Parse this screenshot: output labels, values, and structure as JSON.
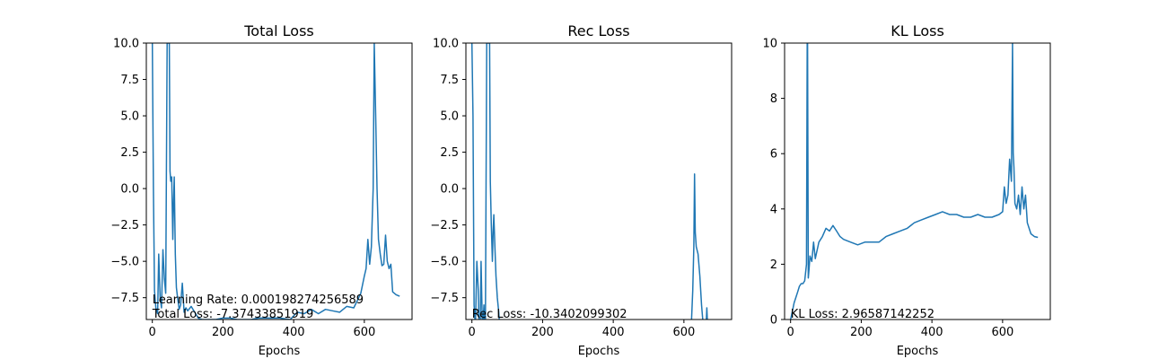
{
  "chart_data": [
    {
      "type": "line",
      "title": "Total Loss",
      "xlabel": "Epochs",
      "ylabel": "",
      "xlim": [
        -17,
        735
      ],
      "ylim": [
        -9,
        10
      ],
      "xticks": [
        0,
        200,
        400,
        600
      ],
      "xtick_labels": [
        "0",
        "200",
        "400",
        "600"
      ],
      "yticks": [
        -7.5,
        -5.0,
        -2.5,
        0.0,
        2.5,
        5.0,
        7.5,
        10.0
      ],
      "ytick_labels": [
        "−7.5",
        "−5.0",
        "−2.5",
        "0.0",
        "2.5",
        "5.0",
        "7.5",
        "10.0"
      ],
      "annotations": [
        "Learning Rate: 0.000198274256589",
        "Total Loss: -7.37433851919"
      ],
      "series_color": "#1f77b4",
      "series": [
        {
          "x": [
            0,
            3,
            6,
            10,
            15,
            18,
            22,
            26,
            30,
            34,
            38,
            42,
            45,
            48,
            50,
            52,
            55,
            58,
            60,
            62,
            65,
            68,
            72,
            76,
            80,
            85,
            90,
            95,
            100,
            110,
            120,
            130,
            140,
            160,
            180,
            200,
            220,
            240,
            260,
            280,
            300,
            330,
            360,
            390,
            410,
            430,
            450,
            470,
            490,
            510,
            530,
            550,
            570,
            590,
            600,
            605,
            610,
            615,
            620,
            625,
            628,
            632,
            636,
            640,
            645,
            650,
            655,
            660,
            665,
            670,
            675,
            680,
            690,
            700
          ],
          "y": [
            10,
            0,
            -7,
            -8.2,
            -8.6,
            -4.5,
            -7.5,
            -8.2,
            -4.2,
            -6.2,
            -7.2,
            10,
            10,
            10,
            1.2,
            0.5,
            0.8,
            -3.5,
            -1.0,
            0.8,
            -4.5,
            -6.8,
            -7.6,
            -8.3,
            -8.0,
            -6.5,
            -8.5,
            -8.2,
            -8.4,
            -8.1,
            -8.5,
            -8.9,
            -9.0,
            -9.0,
            -9.0,
            -8.9,
            -8.9,
            -9.0,
            -9.0,
            -9.0,
            -8.9,
            -8.9,
            -8.9,
            -9.0,
            -8.5,
            -8.6,
            -8.3,
            -8.6,
            -8.3,
            -8.4,
            -8.5,
            -8.1,
            -8.2,
            -7.2,
            -6.0,
            -5.5,
            -3.5,
            -5.2,
            -4.0,
            0.0,
            10,
            5.0,
            0.0,
            -3.5,
            -4.5,
            -5.3,
            -5.2,
            -3.2,
            -5.0,
            -5.5,
            -5.2,
            -7.1,
            -7.3,
            -7.4
          ]
        }
      ]
    },
    {
      "type": "line",
      "title": "Rec Loss",
      "xlabel": "Epochs",
      "ylabel": "",
      "xlim": [
        -17,
        735
      ],
      "ylim": [
        -9,
        10
      ],
      "xticks": [
        0,
        200,
        400,
        600
      ],
      "xtick_labels": [
        "0",
        "200",
        "400",
        "600"
      ],
      "yticks": [
        -7.5,
        -5.0,
        -2.5,
        0.0,
        2.5,
        5.0,
        7.5,
        10.0
      ],
      "ytick_labels": [
        "−7.5",
        "−5.0",
        "−2.5",
        "0.0",
        "2.5",
        "5.0",
        "7.5",
        "10.0"
      ],
      "annotations": [
        "Rec Loss: -10.3402099302"
      ],
      "series_color": "#1f77b4",
      "series": [
        {
          "x": [
            0,
            3,
            6,
            10,
            14,
            18,
            22,
            26,
            30,
            34,
            38,
            42,
            45,
            48,
            50,
            52,
            55,
            58,
            60,
            62,
            65,
            68,
            72,
            76,
            80,
            620,
            625,
            628,
            630,
            632,
            635,
            640,
            645,
            650,
            655,
            660,
            665,
            668,
            672
          ],
          "y": [
            10,
            5.0,
            -8.0,
            -9.5,
            -5.0,
            -7.0,
            -12.0,
            -5.0,
            -10.0,
            -8.0,
            -11,
            10,
            10,
            10,
            10,
            0.5,
            -2.5,
            -5.0,
            -3.0,
            -1.8,
            -4.0,
            -6.0,
            -7.5,
            -8.5,
            -10.0,
            -10.0,
            -7.0,
            -4.0,
            1.0,
            -3.0,
            -4.0,
            -4.5,
            -6.0,
            -8.0,
            -9.5,
            -11,
            -8.2,
            -10.0,
            -12.0
          ]
        }
      ]
    },
    {
      "type": "line",
      "title": "KL Loss",
      "xlabel": "Epochs",
      "ylabel": "",
      "xlim": [
        -17,
        735
      ],
      "ylim": [
        0,
        10
      ],
      "xticks": [
        0,
        200,
        400,
        600
      ],
      "xtick_labels": [
        "0",
        "200",
        "400",
        "600"
      ],
      "yticks": [
        0,
        2,
        4,
        6,
        8,
        10
      ],
      "ytick_labels": [
        "0",
        "2",
        "4",
        "6",
        "8",
        "10"
      ],
      "annotations": [
        "KL Loss: 2.96587142252"
      ],
      "series_color": "#1f77b4",
      "series": [
        {
          "x": [
            0,
            5,
            10,
            15,
            20,
            25,
            30,
            35,
            40,
            45,
            47,
            48,
            50,
            52,
            55,
            60,
            65,
            70,
            75,
            80,
            90,
            100,
            110,
            120,
            130,
            140,
            150,
            170,
            190,
            210,
            230,
            250,
            270,
            290,
            310,
            330,
            350,
            370,
            390,
            410,
            430,
            450,
            470,
            490,
            510,
            530,
            550,
            570,
            590,
            600,
            605,
            610,
            615,
            620,
            625,
            628,
            630,
            632,
            635,
            640,
            645,
            650,
            655,
            660,
            665,
            670,
            680,
            690,
            700
          ],
          "y": [
            0.0,
            0.3,
            0.6,
            0.8,
            1.0,
            1.2,
            1.3,
            1.3,
            1.4,
            2.0,
            10,
            10,
            1.5,
            1.8,
            2.3,
            2.1,
            2.8,
            2.2,
            2.5,
            2.8,
            3.0,
            3.3,
            3.2,
            3.4,
            3.2,
            3.0,
            2.9,
            2.8,
            2.7,
            2.8,
            2.8,
            2.8,
            3.0,
            3.1,
            3.2,
            3.3,
            3.5,
            3.6,
            3.7,
            3.8,
            3.9,
            3.8,
            3.8,
            3.7,
            3.7,
            3.8,
            3.7,
            3.7,
            3.8,
            3.9,
            4.8,
            4.2,
            4.5,
            5.8,
            5.0,
            10,
            6.0,
            5.5,
            4.2,
            4.0,
            4.5,
            3.8,
            4.8,
            4.0,
            4.5,
            3.5,
            3.1,
            3.0,
            2.97
          ]
        }
      ]
    }
  ]
}
